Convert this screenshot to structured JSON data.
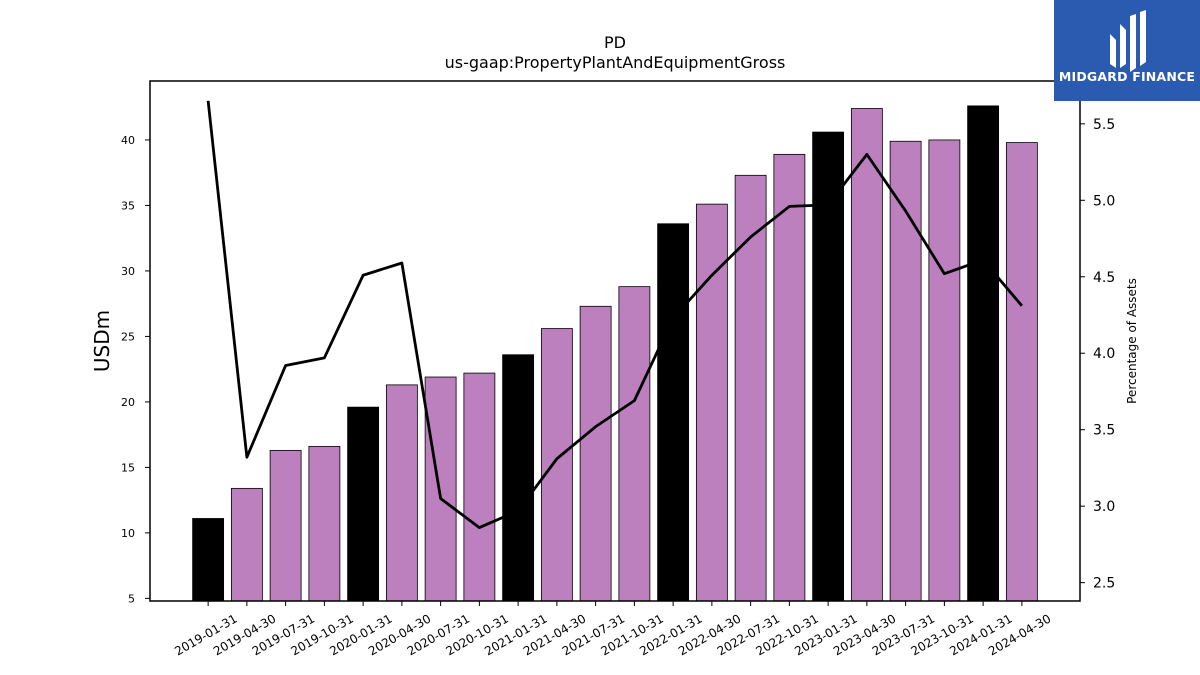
{
  "chart_data": {
    "type": "bar",
    "title": "PD",
    "subtitle": "us-gaap:PropertyPlantAndEquipmentGross",
    "ylabel": "USDm",
    "y2label": "Percentage of Assets",
    "categories": [
      "2019-01-31",
      "2019-04-30",
      "2019-07-31",
      "2019-10-31",
      "2020-01-31",
      "2020-04-30",
      "2020-07-31",
      "2020-10-31",
      "2021-01-31",
      "2021-04-30",
      "2021-07-31",
      "2021-10-31",
      "2022-01-31",
      "2022-04-30",
      "2022-07-31",
      "2022-10-31",
      "2023-01-31",
      "2023-04-30",
      "2023-07-31",
      "2023-10-31",
      "2024-01-31",
      "2024-04-30"
    ],
    "series": [
      {
        "type": "bar",
        "axis": "left",
        "values": [
          11.1,
          13.4,
          16.3,
          16.6,
          19.6,
          21.3,
          21.9,
          22.2,
          23.6,
          25.6,
          27.3,
          28.8,
          33.6,
          35.1,
          37.3,
          38.9,
          40.6,
          42.4,
          39.9,
          40.0,
          42.6,
          39.8
        ],
        "highlighted": [
          true,
          false,
          false,
          false,
          true,
          false,
          false,
          false,
          true,
          false,
          false,
          false,
          true,
          false,
          false,
          false,
          true,
          false,
          false,
          false,
          true,
          false
        ]
      },
      {
        "type": "line",
        "axis": "right",
        "values": [
          5.65,
          3.32,
          3.92,
          3.97,
          4.51,
          4.59,
          3.05,
          2.86,
          2.97,
          3.31,
          3.52,
          3.69,
          4.23,
          4.51,
          4.76,
          4.96,
          4.97,
          5.3,
          4.93,
          4.52,
          4.61,
          4.31
        ]
      }
    ],
    "ylim": [
      4.8,
      44.5
    ],
    "y2lim": [
      2.38,
      5.78
    ],
    "yticks": [
      5,
      10,
      15,
      20,
      25,
      30,
      35,
      40
    ],
    "y2ticks": [
      2.5,
      3.0,
      3.5,
      4.0,
      4.5,
      5.0,
      5.5
    ],
    "colors": {
      "bar": "#bb80bd",
      "bar_highlight": "#000000",
      "line": "#000000"
    },
    "grid": false
  },
  "logo": {
    "text": "MIDGARD FINANCE",
    "color": "#2b5bb0"
  }
}
